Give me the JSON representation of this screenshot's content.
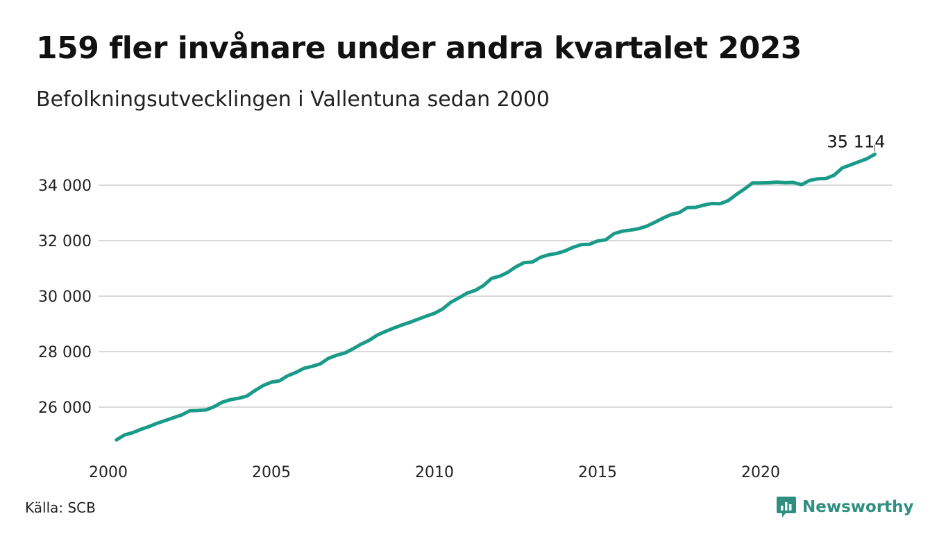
{
  "title": "159 fler invånare under andra kvartalet 2023",
  "subtitle": "Befolkningsutvecklingen i Vallentuna sedan 2000",
  "source": "Källa: SCB",
  "brand": {
    "name": "Newsworthy",
    "color": "#2f8f80",
    "icon": "bar-chart-logo-icon"
  },
  "colors": {
    "line": "#1a9a88",
    "grid": "#d9d9d9"
  },
  "chart_data": {
    "type": "line",
    "x_ticks": [
      "2000",
      "2005",
      "2010",
      "2015",
      "2020"
    ],
    "y_ticks": [
      "26 000",
      "28 000",
      "30 000",
      "32 000",
      "34 000"
    ],
    "xlim": [
      2000,
      2024
    ],
    "ylim": [
      24500,
      35700
    ],
    "grid": true,
    "end_label": "35 114",
    "series": [
      {
        "x": [
          2000.25,
          2000.5,
          2000.75,
          2001.0,
          2001.25,
          2001.5,
          2001.75,
          2002.0,
          2002.25,
          2002.5,
          2002.75,
          2003.0,
          2003.25,
          2003.5,
          2003.75,
          2004.0,
          2004.25,
          2004.5,
          2004.75,
          2005.0,
          2005.25,
          2005.5,
          2005.75,
          2006.0,
          2006.25,
          2006.5,
          2006.75,
          2007.0,
          2007.25,
          2007.5,
          2007.75,
          2008.0,
          2008.25,
          2008.5,
          2008.75,
          2009.0,
          2009.25,
          2009.5,
          2009.75,
          2010.0,
          2010.25,
          2010.5,
          2010.75,
          2011.0,
          2011.25,
          2011.5,
          2011.75,
          2012.0,
          2012.25,
          2012.5,
          2012.75,
          2013.0,
          2013.25,
          2013.5,
          2013.75,
          2014.0,
          2014.25,
          2014.5,
          2014.75,
          2015.0,
          2015.25,
          2015.5,
          2015.75,
          2016.0,
          2016.25,
          2016.5,
          2016.75,
          2017.0,
          2017.25,
          2017.5,
          2017.75,
          2018.0,
          2018.25,
          2018.5,
          2018.75,
          2019.0,
          2019.25,
          2019.5,
          2019.75,
          2020.0,
          2020.25,
          2020.5,
          2020.75,
          2021.0,
          2021.25,
          2021.5,
          2021.75,
          2022.0,
          2022.25,
          2022.5,
          2022.75,
          2023.0,
          2023.25,
          2023.5
        ],
        "y": [
          24820,
          25000,
          25080,
          25200,
          25300,
          25420,
          25520,
          25620,
          25720,
          25870,
          25880,
          25900,
          26020,
          26180,
          26270,
          26320,
          26400,
          26600,
          26780,
          26900,
          26950,
          27130,
          27250,
          27400,
          27470,
          27560,
          27760,
          27870,
          27950,
          28100,
          28270,
          28410,
          28600,
          28730,
          28850,
          28960,
          29060,
          29170,
          29280,
          29380,
          29540,
          29780,
          29940,
          30110,
          30210,
          30380,
          30640,
          30720,
          30860,
          31060,
          31210,
          31230,
          31400,
          31490,
          31540,
          31630,
          31760,
          31860,
          31870,
          31990,
          32030,
          32250,
          32340,
          32380,
          32430,
          32520,
          32660,
          32810,
          32940,
          33010,
          33190,
          33200,
          33280,
          33340,
          33330,
          33440,
          33660,
          33860,
          34080,
          34080,
          34090,
          34110,
          34090,
          34100,
          34020,
          34170,
          34230,
          34240,
          34360,
          34620,
          34730,
          34840,
          34950,
          35114
        ]
      }
    ]
  }
}
